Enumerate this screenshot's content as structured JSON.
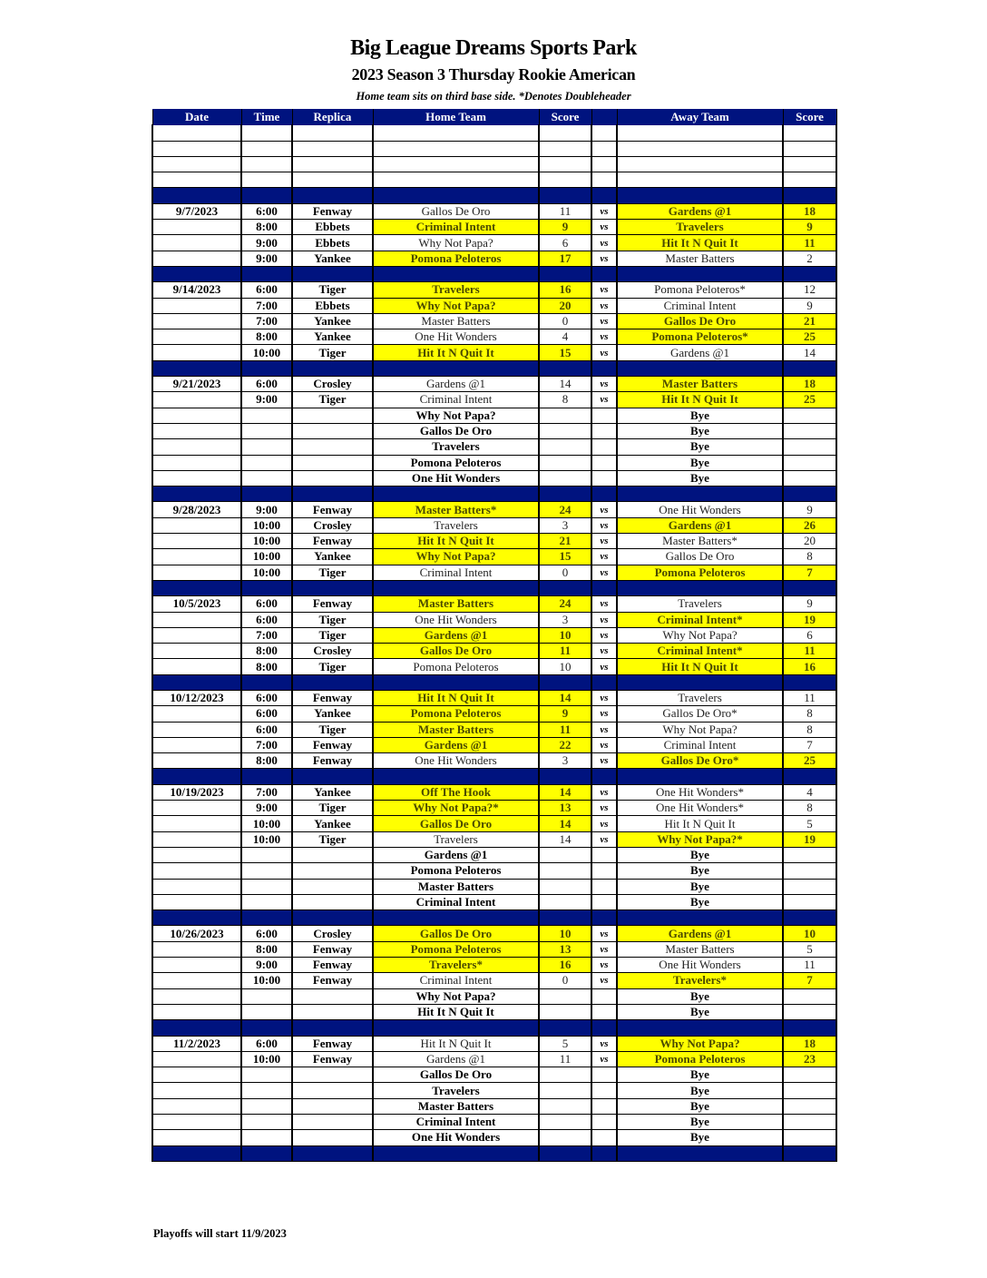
{
  "title": "Big League Dreams Sports Park",
  "subtitle": "2023 Season 3 Thursday Rookie American",
  "note": "Home team sits on third base side.  *Denotes Doubleheader",
  "footer": "Playoffs will start 11/9/2023",
  "colors": {
    "header": "#00137f",
    "highlight": "#ffff00"
  },
  "headers": [
    "Date",
    "Time",
    "Replica",
    "Home Team",
    "Score",
    "",
    "Away Team",
    "Score"
  ],
  "vs_label": "vs",
  "blank_rows": 4,
  "sections": [
    {
      "date": "9/7/2023",
      "games": [
        [
          "6:00",
          "Fenway",
          "Gallos De Oro",
          "11",
          "Gardens @1",
          "18",
          "a"
        ],
        [
          "8:00",
          "Ebbets",
          "Criminal Intent",
          "9",
          "Travelers",
          "9",
          "ha"
        ],
        [
          "9:00",
          "Ebbets",
          "Why Not Papa?",
          "6",
          "Hit It N Quit It",
          "11",
          "a"
        ],
        [
          "9:00",
          "Yankee",
          "Pomona Peloteros",
          "17",
          "Master Batters",
          "2",
          "h"
        ]
      ],
      "byes": []
    },
    {
      "date": "9/14/2023",
      "games": [
        [
          "6:00",
          "Tiger",
          "Travelers",
          "16",
          "Pomona Peloteros*",
          "12",
          "h"
        ],
        [
          "7:00",
          "Ebbets",
          "Why Not Papa?",
          "20",
          "Criminal Intent",
          "9",
          "h"
        ],
        [
          "7:00",
          "Yankee",
          "Master Batters",
          "0",
          "Gallos De Oro",
          "21",
          "a"
        ],
        [
          "8:00",
          "Yankee",
          "One Hit Wonders",
          "4",
          "Pomona Peloteros*",
          "25",
          "a"
        ],
        [
          "10:00",
          "Tiger",
          "Hit It N Quit It",
          "15",
          "Gardens @1",
          "14",
          "h"
        ]
      ],
      "byes": []
    },
    {
      "date": "9/21/2023",
      "games": [
        [
          "6:00",
          "Crosley",
          "Gardens @1",
          "14",
          "Master Batters",
          "18",
          "a"
        ],
        [
          "9:00",
          "Tiger",
          "Criminal Intent",
          "8",
          "Hit It N Quit It",
          "25",
          "a"
        ]
      ],
      "byes": [
        "Why Not Papa?",
        "Gallos De Oro",
        "Travelers",
        "Pomona Peloteros",
        "One Hit Wonders"
      ]
    },
    {
      "date": "9/28/2023",
      "games": [
        [
          "9:00",
          "Fenway",
          "Master Batters*",
          "24",
          "One Hit Wonders",
          "9",
          "h"
        ],
        [
          "10:00",
          "Crosley",
          "Travelers",
          "3",
          "Gardens @1",
          "26",
          "a"
        ],
        [
          "10:00",
          "Fenway",
          "Hit It N Quit It",
          "21",
          "Master Batters*",
          "20",
          "h"
        ],
        [
          "10:00",
          "Yankee",
          "Why Not Papa?",
          "15",
          "Gallos De Oro",
          "8",
          "h"
        ],
        [
          "10:00",
          "Tiger",
          "Criminal Intent",
          "0",
          "Pomona Peloteros",
          "7",
          "a"
        ]
      ],
      "byes": []
    },
    {
      "date": "10/5/2023",
      "games": [
        [
          "6:00",
          "Fenway",
          "Master Batters",
          "24",
          "Travelers",
          "9",
          "h"
        ],
        [
          "6:00",
          "Tiger",
          "One Hit Wonders",
          "3",
          "Criminal Intent*",
          "19",
          "a"
        ],
        [
          "7:00",
          "Tiger",
          "Gardens @1",
          "10",
          "Why Not Papa?",
          "6",
          "h"
        ],
        [
          "8:00",
          "Crosley",
          "Gallos De Oro",
          "11",
          "Criminal Intent*",
          "11",
          "ha"
        ],
        [
          "8:00",
          "Tiger",
          "Pomona Peloteros",
          "10",
          "Hit It N Quit It",
          "16",
          "a"
        ]
      ],
      "byes": []
    },
    {
      "date": "10/12/2023",
      "games": [
        [
          "6:00",
          "Fenway",
          "Hit It N Quit It",
          "14",
          "Travelers",
          "11",
          "h"
        ],
        [
          "6:00",
          "Yankee",
          "Pomona Peloteros",
          "9",
          "Gallos De Oro*",
          "8",
          "h"
        ],
        [
          "6:00",
          "Tiger",
          "Master Batters",
          "11",
          "Why Not Papa?",
          "8",
          "h"
        ],
        [
          "7:00",
          "Fenway",
          "Gardens @1",
          "22",
          "Criminal Intent",
          "7",
          "h"
        ],
        [
          "8:00",
          "Fenway",
          "One Hit Wonders",
          "3",
          "Gallos De Oro*",
          "25",
          "a"
        ]
      ],
      "byes": []
    },
    {
      "date": "10/19/2023",
      "games": [
        [
          "7:00",
          "Yankee",
          "Off The Hook",
          "14",
          "One Hit Wonders*",
          "4",
          "h"
        ],
        [
          "9:00",
          "Tiger",
          "Why Not Papa?*",
          "13",
          "One Hit Wonders*",
          "8",
          "h"
        ],
        [
          "10:00",
          "Yankee",
          "Gallos De Oro",
          "14",
          "Hit It N Quit It",
          "5",
          "h"
        ],
        [
          "10:00",
          "Tiger",
          "Travelers",
          "14",
          "Why Not Papa?*",
          "19",
          "a"
        ]
      ],
      "byes": [
        "Gardens @1",
        "Pomona Peloteros",
        "Master Batters",
        "Criminal Intent"
      ]
    },
    {
      "date": "10/26/2023",
      "games": [
        [
          "6:00",
          "Crosley",
          "Gallos De Oro",
          "10",
          "Gardens @1",
          "10",
          "ha"
        ],
        [
          "8:00",
          "Fenway",
          "Pomona Peloteros",
          "13",
          "Master Batters",
          "5",
          "h"
        ],
        [
          "9:00",
          "Fenway",
          "Travelers*",
          "16",
          "One Hit Wonders",
          "11",
          "h"
        ],
        [
          "10:00",
          "Fenway",
          "Criminal Intent",
          "0",
          "Travelers*",
          "7",
          "a"
        ]
      ],
      "byes": [
        "Why Not Papa?",
        "Hit It N Quit It"
      ]
    },
    {
      "date": "11/2/2023",
      "games": [
        [
          "6:00",
          "Fenway",
          "Hit It N Quit It",
          "5",
          "Why Not Papa?",
          "18",
          "a"
        ],
        [
          "10:00",
          "Fenway",
          "Gardens @1",
          "11",
          "Pomona Peloteros",
          "23",
          "a"
        ]
      ],
      "byes": [
        "Gallos De Oro",
        "Travelers",
        "Master Batters",
        "Criminal Intent",
        "One Hit Wonders"
      ]
    }
  ],
  "bye_label": "Bye"
}
